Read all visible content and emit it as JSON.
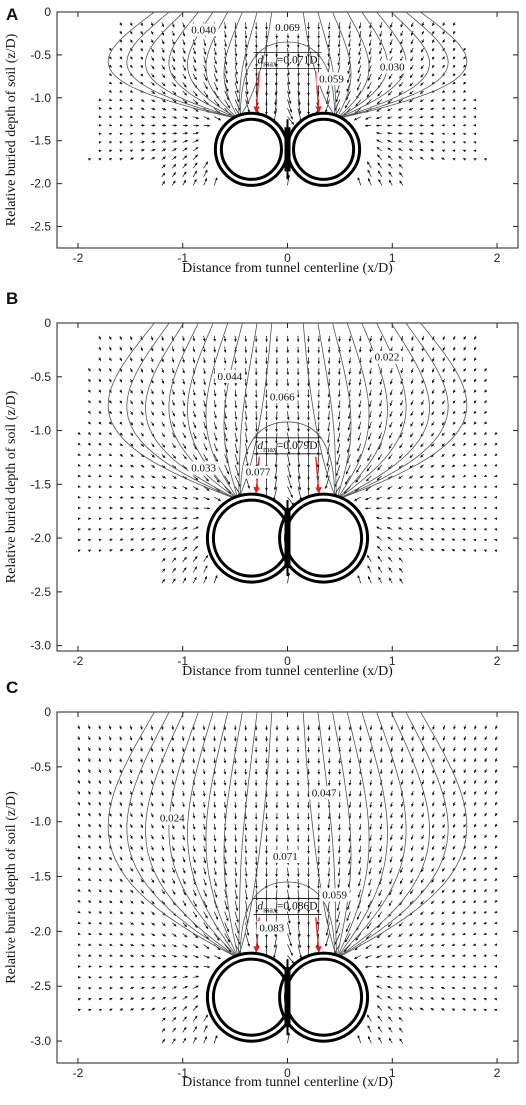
{
  "chart_data": [
    {
      "type": "vector-field",
      "panel": "A",
      "title": "",
      "xlabel": "Distance from tunnel centerline (x/D)",
      "ylabel": "Relative buried depth of soil (z/D)",
      "xlim": [
        -2.2,
        2.2
      ],
      "ylim": [
        -2.75,
        0
      ],
      "x_ticks": [
        "-2",
        "-1",
        "0",
        "1",
        "2"
      ],
      "y_ticks": [
        "0",
        "-0.5",
        "-1.0",
        "-1.5",
        "-2.0",
        "-2.5"
      ],
      "tunnel_center_depth": -1.6,
      "tunnel_radius": 0.42,
      "contour_labels": [
        {
          "text": "0.040",
          "x": -0.8,
          "y": -0.25
        },
        {
          "text": "0.069",
          "x": 0.0,
          "y": -0.22
        },
        {
          "text": "0.059",
          "x": 0.42,
          "y": -0.82
        },
        {
          "text": "0.030",
          "x": 1.0,
          "y": -0.68
        }
      ],
      "dmax_label": {
        "prefix": "d",
        "sub": "max",
        "value": "=0.071D",
        "x": 0.0,
        "y": -0.6
      },
      "contours": [
        0.03,
        0.04,
        0.059,
        0.069
      ],
      "grid": false
    },
    {
      "type": "vector-field",
      "panel": "B",
      "title": "",
      "xlabel": "Distance from tunnel centerline (x/D)",
      "ylabel": "Relative buried depth of soil (z/D)",
      "xlim": [
        -2.2,
        2.2
      ],
      "ylim": [
        -3.05,
        0
      ],
      "x_ticks": [
        "-2",
        "-1",
        "0",
        "1",
        "2"
      ],
      "y_ticks": [
        "0",
        "-0.5",
        "-1.0",
        "-1.5",
        "-2.0",
        "-2.5",
        "-3.0"
      ],
      "tunnel_center_depth": -2.0,
      "tunnel_radius": 0.42,
      "contour_labels": [
        {
          "text": "0.022",
          "x": 0.95,
          "y": -0.35
        },
        {
          "text": "0.044",
          "x": -0.55,
          "y": -0.53
        },
        {
          "text": "0.066",
          "x": -0.05,
          "y": -0.72
        },
        {
          "text": "0.033",
          "x": -0.8,
          "y": -1.38
        },
        {
          "text": "0.077",
          "x": -0.28,
          "y": -1.42
        }
      ],
      "dmax_label": {
        "prefix": "d",
        "sub": "max",
        "value": "=0.079D",
        "x": 0.0,
        "y": -1.17
      },
      "contours": [
        0.022,
        0.033,
        0.044,
        0.066,
        0.077
      ],
      "grid": false
    },
    {
      "type": "vector-field",
      "panel": "C",
      "title": "",
      "xlabel": "Distance from tunnel centerline (x/D)",
      "ylabel": "Relative buried depth of soil (z/D)",
      "xlim": [
        -2.2,
        2.2
      ],
      "ylim": [
        -3.2,
        0
      ],
      "x_ticks": [
        "-2",
        "-1",
        "0",
        "1",
        "2"
      ],
      "y_ticks": [
        "0",
        "-0.5",
        "-1.0",
        "-1.5",
        "-2.0",
        "-2.5",
        "-3.0"
      ],
      "tunnel_center_depth": -2.6,
      "tunnel_radius": 0.42,
      "contour_labels": [
        {
          "text": "0.047",
          "x": 0.35,
          "y": -0.77
        },
        {
          "text": "0.024",
          "x": -1.1,
          "y": -1.0
        },
        {
          "text": "0.071",
          "x": -0.02,
          "y": -1.35
        },
        {
          "text": "0.059",
          "x": 0.45,
          "y": -1.7
        },
        {
          "text": "0.083",
          "x": -0.15,
          "y": -2.0
        }
      ],
      "dmax_label": {
        "prefix": "d",
        "sub": "max",
        "value": "=0.086D",
        "x": 0.0,
        "y": -1.8
      },
      "contours": [
        0.024,
        0.047,
        0.059,
        0.071,
        0.083
      ],
      "grid": false
    }
  ],
  "colors": {
    "axis": "#222222",
    "arrow": "#111111",
    "contour": "#555555",
    "tunnel": "#000000",
    "dmax_arrow": "#e02020"
  }
}
